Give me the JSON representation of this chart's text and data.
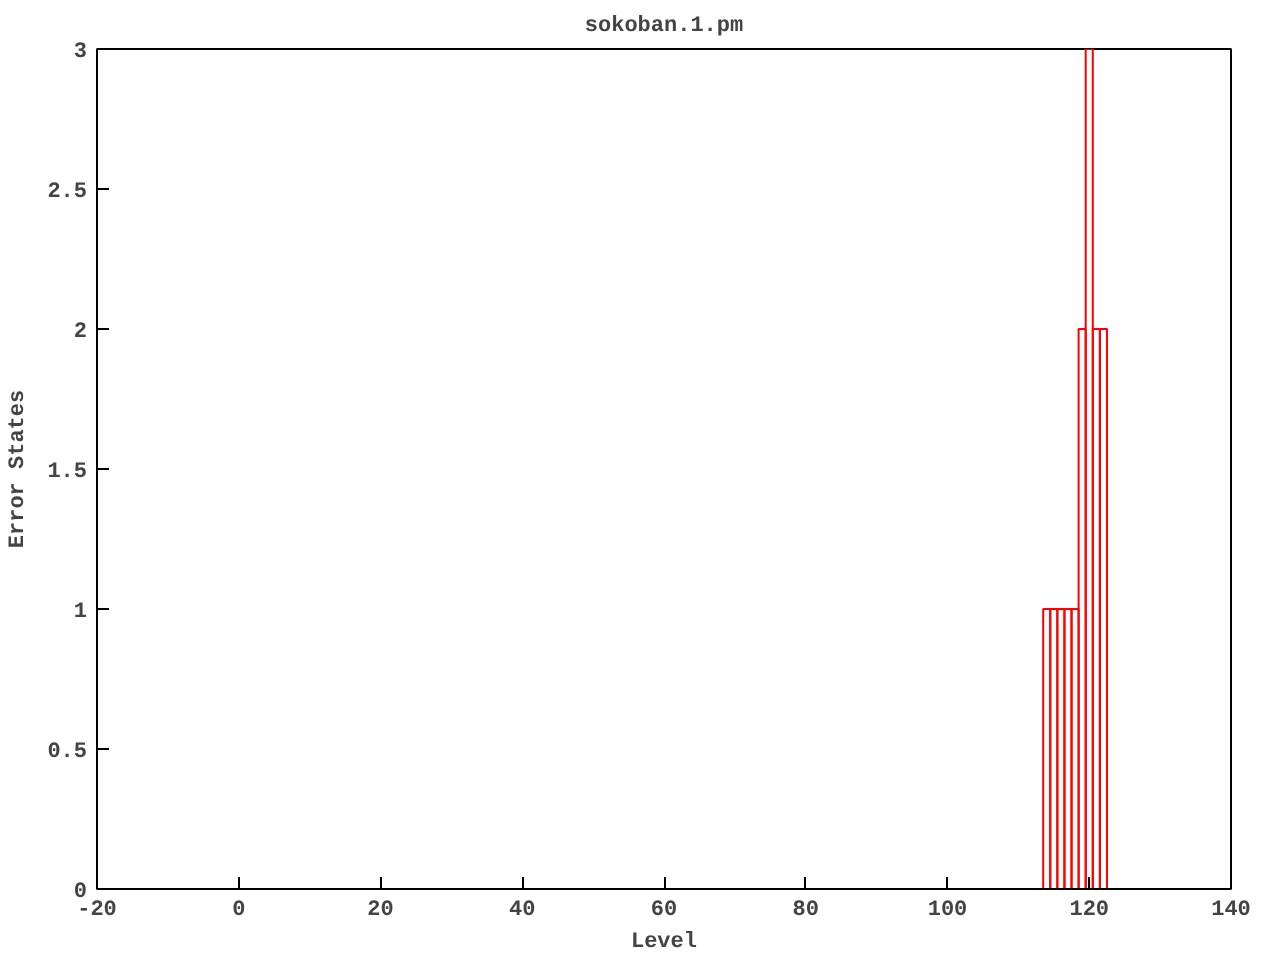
{
  "chart_data": {
    "type": "bar",
    "title": "sokoban.1.pm",
    "xlabel": "Level",
    "ylabel": "Error States",
    "x": [
      114,
      115,
      116,
      117,
      118,
      119,
      120,
      121,
      122
    ],
    "series": [
      {
        "color": "#ff0000",
        "values": [
          1,
          1,
          1,
          1,
          1,
          2,
          3,
          2,
          2
        ]
      }
    ],
    "xlim": [
      -20,
      140
    ],
    "xticks": [
      -20,
      0,
      20,
      40,
      60,
      80,
      100,
      120,
      140
    ],
    "ylim": [
      0,
      3
    ],
    "yticks": [
      0,
      0.5,
      1,
      1.5,
      2,
      2.5,
      3
    ],
    "grid": false
  }
}
